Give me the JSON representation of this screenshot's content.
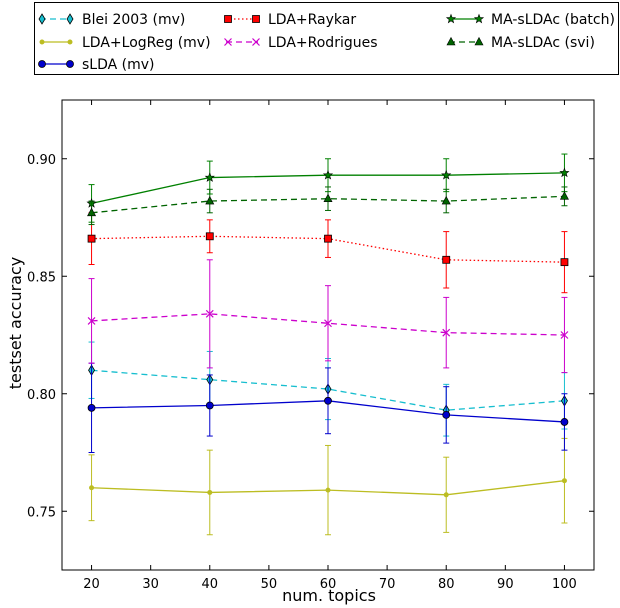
{
  "chart_data": {
    "type": "line",
    "title": "",
    "xlabel": "num. topics",
    "ylabel": "testset accuracy",
    "x": [
      20,
      40,
      60,
      80,
      100
    ],
    "xlim": [
      15,
      105
    ],
    "ylim": [
      0.725,
      0.925
    ],
    "xticks": [
      20,
      30,
      40,
      50,
      60,
      70,
      80,
      90,
      100
    ],
    "yticks": [
      0.75,
      0.8,
      0.85,
      0.9
    ],
    "ytick_labels": [
      "0.75",
      "0.80",
      "0.85",
      "0.90"
    ],
    "grid": false,
    "legend_position": "top",
    "series": [
      {
        "name": "Blei 2003 (mv)",
        "color": "#17becf",
        "line": "dashed",
        "marker": "diamond",
        "values": [
          0.81,
          0.806,
          0.802,
          0.793,
          0.797
        ],
        "errors": [
          0.012,
          0.012,
          0.013,
          0.011,
          0.012
        ]
      },
      {
        "name": "LDA+LogReg (mv)",
        "color": "#bcbd22",
        "line": "solid",
        "marker": "dot",
        "values": [
          0.76,
          0.758,
          0.759,
          0.757,
          0.763
        ],
        "errors": [
          0.014,
          0.018,
          0.019,
          0.016,
          0.018
        ]
      },
      {
        "name": "sLDA (mv)",
        "color": "#0000cc",
        "line": "solid",
        "marker": "circle",
        "values": [
          0.794,
          0.795,
          0.797,
          0.791,
          0.788
        ],
        "errors": [
          0.019,
          0.013,
          0.014,
          0.012,
          0.012
        ]
      },
      {
        "name": "LDA+Raykar",
        "color": "#ff0000",
        "line": "dotted",
        "marker": "square",
        "values": [
          0.866,
          0.867,
          0.866,
          0.857,
          0.856
        ],
        "errors": [
          0.011,
          0.007,
          0.008,
          0.012,
          0.013
        ]
      },
      {
        "name": "LDA+Rodrigues",
        "color": "#cc00cc",
        "line": "dashed",
        "marker": "x",
        "values": [
          0.831,
          0.834,
          0.83,
          0.826,
          0.825
        ],
        "errors": [
          0.018,
          0.023,
          0.016,
          0.015,
          0.016
        ]
      },
      {
        "name": "MA-sLDAc (batch)",
        "color": "#008000",
        "line": "solid",
        "marker": "star",
        "values": [
          0.881,
          0.892,
          0.893,
          0.893,
          0.894
        ],
        "errors": [
          0.008,
          0.007,
          0.007,
          0.007,
          0.008
        ]
      },
      {
        "name": "MA-sLDAc (svi)",
        "color": "#006400",
        "line": "dashed",
        "marker": "triangle",
        "values": [
          0.877,
          0.882,
          0.883,
          0.882,
          0.884
        ],
        "errors": [
          0.005,
          0.005,
          0.005,
          0.005,
          0.004
        ]
      }
    ]
  }
}
